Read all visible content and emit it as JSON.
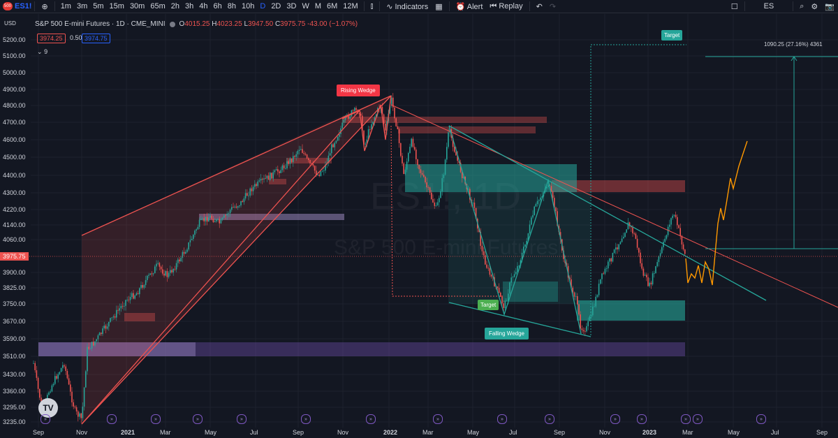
{
  "toolbar": {
    "badge": "500",
    "symbol": "ES1!",
    "intervals": [
      "1m",
      "3m",
      "5m",
      "15m",
      "30m",
      "65m",
      "2h",
      "3h",
      "4h",
      "6h",
      "8h",
      "10h",
      "D",
      "2D",
      "3D",
      "W",
      "M",
      "6M",
      "12M"
    ],
    "active_interval": "D",
    "indicators": "Indicators",
    "alert": "Alert",
    "replay": "Replay",
    "exchange": "ES"
  },
  "header": {
    "title": "S&P 500 E-mini Futures · 1D · CME_MINI",
    "o_label": "O",
    "o": "4015.25",
    "h_label": "H",
    "h": "4023.25",
    "l_label": "L",
    "l": "3947.50",
    "c_label": "C",
    "c": "3975.75",
    "change": "-43.00 (−1.07%)",
    "bid": "3974.25",
    "spread": "0.50",
    "ask": "3974.75",
    "currency": "USD",
    "indicator_count": "9"
  },
  "last_price": "3975.75",
  "price_axis": [
    "5200.00",
    "5100.00",
    "5000.00",
    "4900.00",
    "4800.00",
    "4700.00",
    "4600.00",
    "4500.00",
    "4400.00",
    "4300.00",
    "4220.00",
    "4140.00",
    "4060.00",
    "3975.75",
    "3900.00",
    "3825.00",
    "3750.00",
    "3670.00",
    "3590.00",
    "3510.00",
    "3430.00",
    "3360.00",
    "3295.00",
    "3235.00"
  ],
  "time_axis": [
    "Sep",
    "Nov",
    "2021",
    "Mar",
    "May",
    "Jul",
    "Sep",
    "Nov",
    "2022",
    "Mar",
    "May",
    "Jul",
    "Sep",
    "Nov",
    "2023",
    "Mar",
    "May",
    "Jul",
    "Sep"
  ],
  "annotations": {
    "rising_wedge": "Rising Wedge",
    "falling_wedge": "Falling Wedge",
    "target_low": "Target",
    "target_high": "Target",
    "measure": "1090.25 (27.16%) 4361"
  },
  "watermark": {
    "symbol": "ES1!, 1D",
    "name": "S&P 500 E-mini Futures"
  },
  "colors": {
    "background": "#131722",
    "bearish": "#ef5350",
    "bullish": "#26a69a",
    "projection": "#ff9800",
    "zone_purple": "#7e57c2"
  }
}
